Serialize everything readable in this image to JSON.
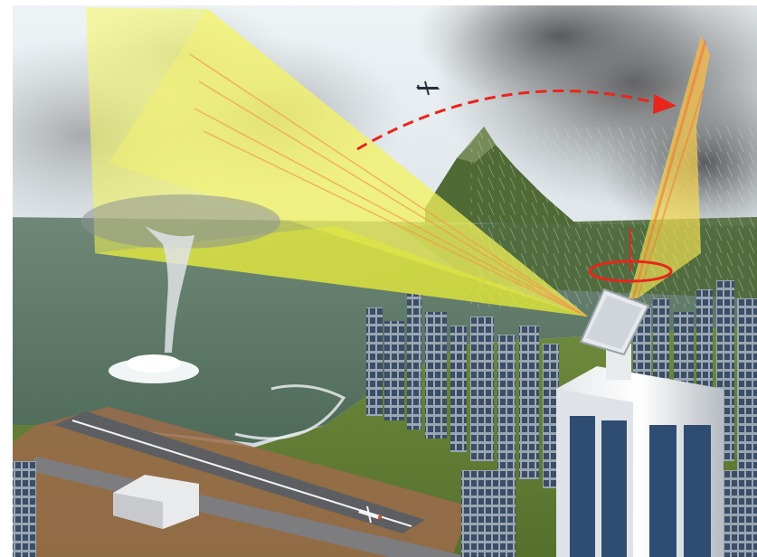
{
  "scene": {
    "elements": [
      "sky",
      "storm-clouds",
      "sea",
      "waterspout",
      "mountain",
      "rain-shaft",
      "airport-runway",
      "aircraft-on-runway",
      "aircraft-in-flight",
      "city-skyline",
      "radar-tower",
      "phased-array-radar",
      "radar-beam-horizontal",
      "radar-beam-vertical",
      "rotation-arrow",
      "rotation-ring"
    ]
  },
  "colors": {
    "sky": "#dbe5ec",
    "cloud_dark": "#6e6f70",
    "sea": "#5f7a6a",
    "land": "#6f8a3e",
    "beam": "#f3f53a",
    "beam_core": "#f08a3c",
    "arrow": "#e8261b"
  }
}
